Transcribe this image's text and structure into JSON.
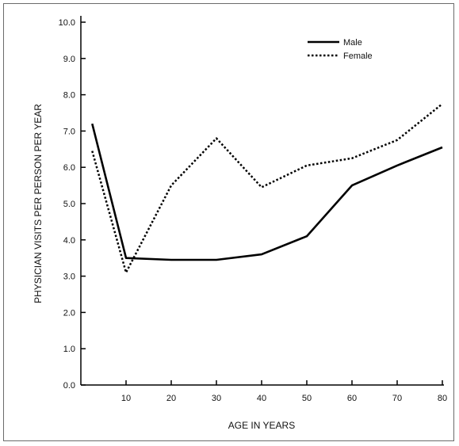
{
  "chart_data": {
    "type": "line",
    "xlabel": "AGE IN YEARS",
    "ylabel": "PHYSICIAN VISITS PER PERSON PER YEAR",
    "xlim": [
      0,
      80
    ],
    "ylim": [
      0,
      10
    ],
    "x_ticks": [
      "10",
      "20",
      "30",
      "40",
      "50",
      "60",
      "70",
      "80"
    ],
    "y_ticks": [
      "0.0",
      "1.0",
      "2.0",
      "3.0",
      "4.0",
      "5.0",
      "6.0",
      "7.0",
      "8.0",
      "9.0",
      "10.0"
    ],
    "grid": false,
    "legend_position": "top-right",
    "series": [
      {
        "name": "Male",
        "style": "solid",
        "color": "#000000",
        "points": [
          [
            2.5,
            7.2
          ],
          [
            10,
            3.5
          ],
          [
            20,
            3.45
          ],
          [
            30,
            3.45
          ],
          [
            40,
            3.6
          ],
          [
            50,
            4.1
          ],
          [
            60,
            5.5
          ],
          [
            70,
            6.05
          ],
          [
            80,
            6.55
          ]
        ]
      },
      {
        "name": "Female",
        "style": "dotted",
        "color": "#000000",
        "points": [
          [
            2.5,
            6.45
          ],
          [
            10,
            3.1
          ],
          [
            20,
            5.5
          ],
          [
            30,
            6.8
          ],
          [
            40,
            5.45
          ],
          [
            50,
            6.05
          ],
          [
            60,
            6.25
          ],
          [
            70,
            6.75
          ],
          [
            80,
            7.75
          ]
        ]
      }
    ]
  }
}
